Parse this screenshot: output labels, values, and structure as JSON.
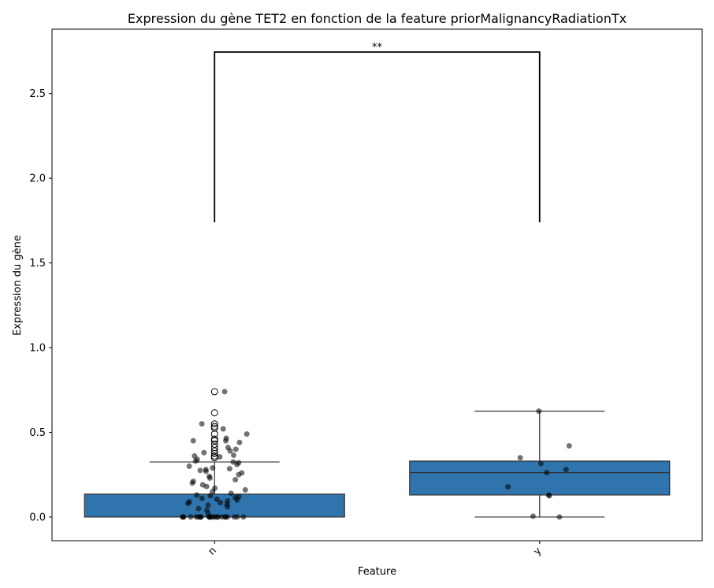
{
  "chart_data": {
    "type": "box",
    "title": "Expression du gène TET2 en fonction de la feature priorMalignancyRadiationTx",
    "xlabel": "Feature",
    "ylabel": "Expression du gène",
    "categories": [
      "n",
      "y"
    ],
    "ylim": [
      -0.14,
      2.88
    ],
    "yticks": [
      0.0,
      0.5,
      1.0,
      1.5,
      2.0,
      2.5
    ],
    "ytick_labels": [
      "0.0",
      "0.5",
      "1.0",
      "1.5",
      "2.0",
      "2.5"
    ],
    "box_color": "#2f74ad",
    "box_edge_color": "#333333",
    "point_color": "#000000",
    "boxes": [
      {
        "category": "n",
        "q1": 0.0,
        "median": 0.0,
        "q3": 0.135,
        "whisker_low": 0.0,
        "whisker_high": 0.325,
        "outliers": [
          0.74,
          0.615,
          0.55,
          0.535,
          0.525,
          0.49,
          0.46,
          0.45,
          0.43,
          0.41,
          0.39,
          0.375,
          0.36,
          0.35
        ]
      },
      {
        "category": "y",
        "q1": 0.13,
        "median": 0.262,
        "q3": 0.33,
        "whisker_low": 0.0,
        "whisker_high": 0.625,
        "outliers": []
      }
    ],
    "points": [
      {
        "category": "n",
        "values": [
          0.74,
          0.55,
          0.52,
          0.49,
          0.465,
          0.45,
          0.45,
          0.44,
          0.41,
          0.4,
          0.39,
          0.38,
          0.365,
          0.36,
          0.355,
          0.34,
          0.33,
          0.325,
          0.32,
          0.31,
          0.3,
          0.29,
          0.285,
          0.28,
          0.275,
          0.27,
          0.26,
          0.25,
          0.24,
          0.23,
          0.22,
          0.21,
          0.2,
          0.19,
          0.18,
          0.17,
          0.16,
          0.15,
          0.14,
          0.13,
          0.125,
          0.12,
          0.115,
          0.11,
          0.105,
          0.1,
          0.095,
          0.09,
          0.085,
          0.08,
          0.075,
          0.07,
          0.06,
          0.05,
          0.04,
          0.02,
          0.0,
          0.0,
          0.0,
          0.0,
          0.0,
          0.0,
          0.0,
          0.0,
          0.0,
          0.0,
          0.0,
          0.0,
          0.0,
          0.0,
          0.0,
          0.0,
          0.0,
          0.0,
          0.0,
          0.0,
          0.0,
          0.0,
          0.0,
          0.0
        ]
      },
      {
        "category": "y",
        "values": [
          0.625,
          0.42,
          0.35,
          0.315,
          0.28,
          0.262,
          0.178,
          0.13,
          0.125,
          0.005,
          0.0
        ]
      }
    ],
    "annotations": [
      {
        "text": "**",
        "between": [
          "n",
          "y"
        ],
        "y_bottom": 1.74,
        "y_top": 2.745
      }
    ],
    "grid": false,
    "legend": "none"
  }
}
